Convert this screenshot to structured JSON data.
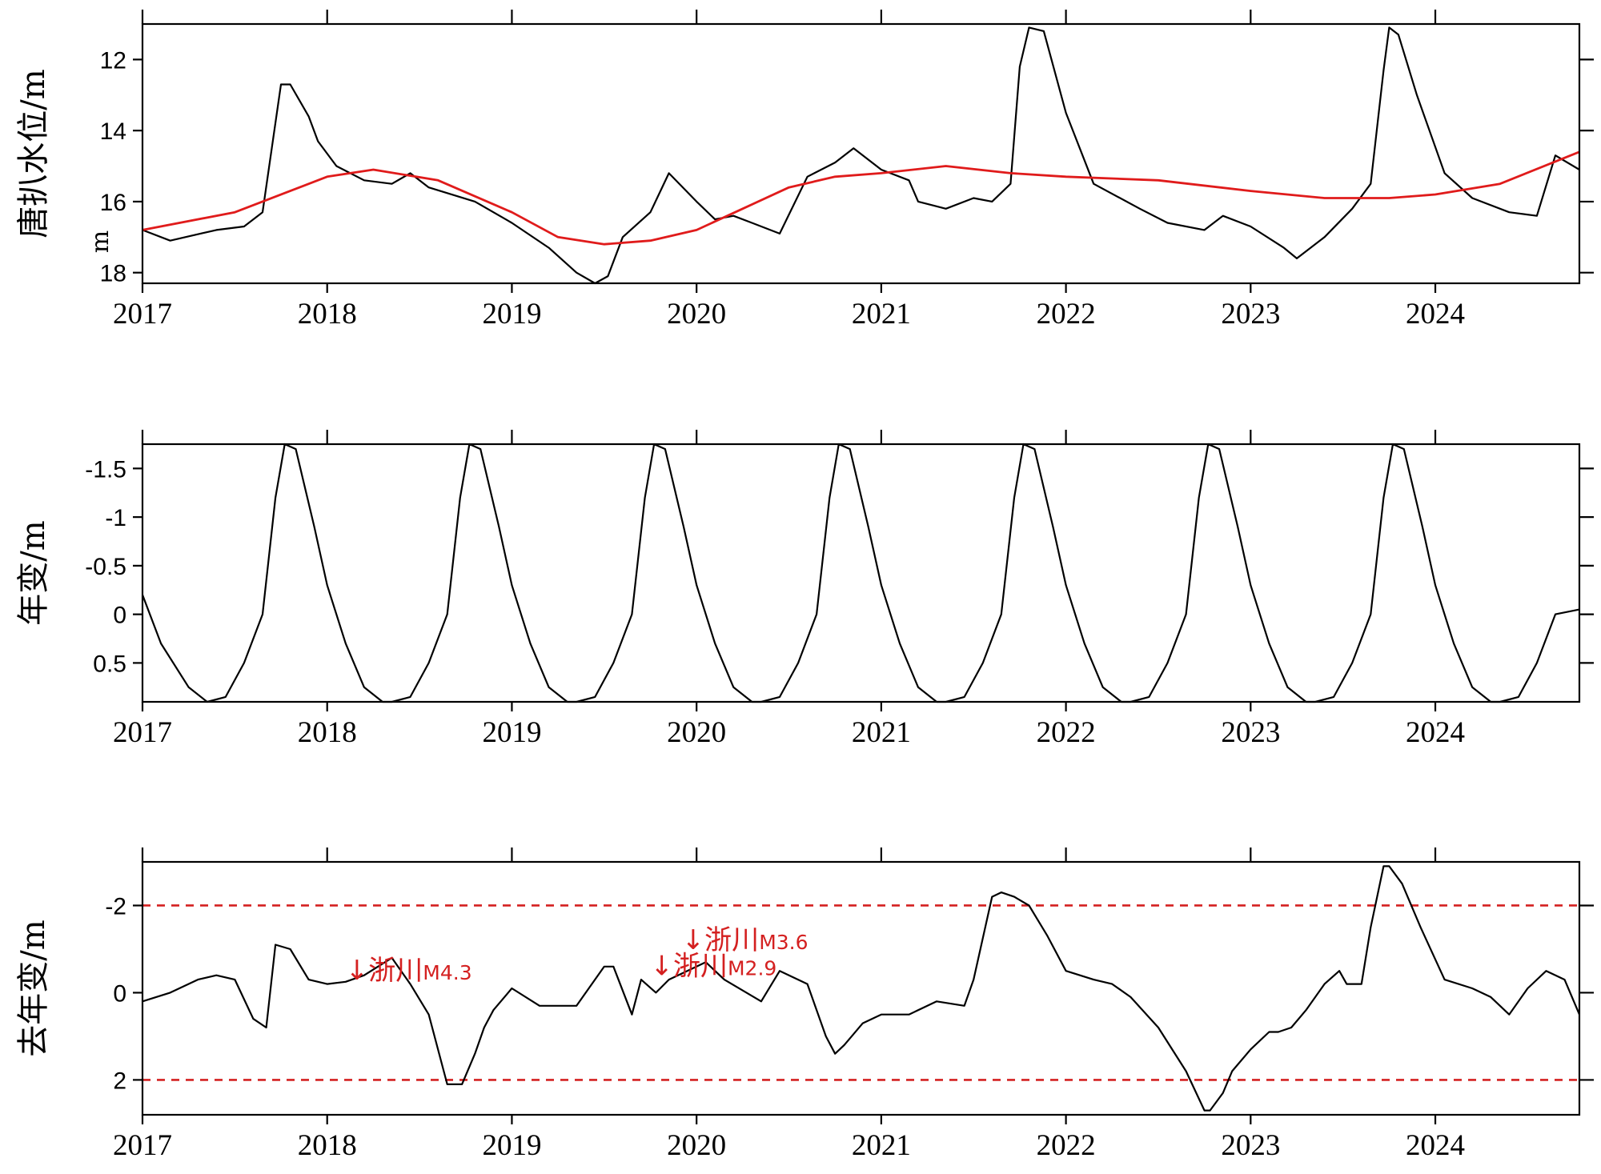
{
  "colors": {
    "series": "#000000",
    "trend": "#e01b1b",
    "threshold": "#d42020",
    "annotation": "#d42020"
  },
  "chart_data": [
    {
      "type": "line",
      "ylabel": "唐扒水位/m",
      "unit_note": "m",
      "ylim": [
        18.3,
        11.0
      ],
      "y_inverted": true,
      "yticks": [
        "12",
        "14",
        "16",
        "18"
      ],
      "xlim": [
        2017.0,
        2024.78
      ],
      "xticks": [
        "2017",
        "2018",
        "2019",
        "2020",
        "2021",
        "2022",
        "2023",
        "2024"
      ],
      "series": [
        {
          "role": "observed",
          "color": "#000000",
          "x": [
            2017.0,
            2017.15,
            2017.4,
            2017.55,
            2017.65,
            2017.75,
            2017.8,
            2017.9,
            2017.95,
            2018.05,
            2018.2,
            2018.35,
            2018.45,
            2018.55,
            2018.8,
            2019.0,
            2019.2,
            2019.35,
            2019.45,
            2019.52,
            2019.6,
            2019.75,
            2019.85,
            2020.0,
            2020.1,
            2020.2,
            2020.3,
            2020.45,
            2020.6,
            2020.75,
            2020.85,
            2021.0,
            2021.15,
            2021.2,
            2021.35,
            2021.5,
            2021.6,
            2021.7,
            2021.75,
            2021.8,
            2021.88,
            2022.0,
            2022.15,
            2022.4,
            2022.55,
            2022.75,
            2022.85,
            2023.0,
            2023.18,
            2023.25,
            2023.4,
            2023.55,
            2023.65,
            2023.72,
            2023.75,
            2023.8,
            2023.9,
            2024.05,
            2024.2,
            2024.4,
            2024.55,
            2024.65,
            2024.78
          ],
          "y": [
            16.8,
            17.1,
            16.8,
            16.7,
            16.3,
            12.7,
            12.7,
            13.6,
            14.3,
            15.0,
            15.4,
            15.5,
            15.2,
            15.6,
            16.0,
            16.6,
            17.3,
            18.0,
            18.3,
            18.1,
            17.0,
            16.3,
            15.2,
            16.0,
            16.5,
            16.4,
            16.6,
            16.9,
            15.3,
            14.9,
            14.5,
            15.1,
            15.4,
            16.0,
            16.2,
            15.9,
            16.0,
            15.5,
            12.2,
            11.1,
            11.2,
            13.5,
            15.5,
            16.2,
            16.6,
            16.8,
            16.4,
            16.7,
            17.3,
            17.6,
            17.0,
            16.2,
            15.5,
            12.3,
            11.1,
            11.3,
            13.0,
            15.2,
            15.9,
            16.3,
            16.4,
            14.7,
            15.1
          ]
        },
        {
          "role": "trend",
          "color": "#e01b1b",
          "x": [
            2017.0,
            2017.5,
            2017.8,
            2018.0,
            2018.25,
            2018.6,
            2019.0,
            2019.25,
            2019.5,
            2019.75,
            2020.0,
            2020.25,
            2020.5,
            2020.75,
            2021.0,
            2021.35,
            2021.7,
            2022.0,
            2022.5,
            2023.0,
            2023.4,
            2023.75,
            2024.0,
            2024.35,
            2024.78
          ],
          "y": [
            16.8,
            16.3,
            15.7,
            15.3,
            15.1,
            15.4,
            16.3,
            17.0,
            17.2,
            17.1,
            16.8,
            16.2,
            15.6,
            15.3,
            15.2,
            15.0,
            15.2,
            15.3,
            15.4,
            15.7,
            15.9,
            15.9,
            15.8,
            15.5,
            14.6
          ]
        }
      ]
    },
    {
      "type": "line",
      "ylabel": "年变/m",
      "ylim": [
        0.9,
        -1.75
      ],
      "y_inverted": true,
      "yticks": [
        "-1.5",
        "-1",
        "-0.5",
        "0",
        "0.5"
      ],
      "xlim": [
        2017.0,
        2024.78
      ],
      "xticks": [
        "2017",
        "2018",
        "2019",
        "2020",
        "2021",
        "2022",
        "2023",
        "2024"
      ],
      "series": [
        {
          "role": "annual",
          "color": "#000000",
          "x": [
            2017.0,
            2017.1,
            2017.25,
            2017.35,
            2017.45,
            2017.55,
            2017.65,
            2017.72,
            2017.77,
            2017.83,
            2017.93,
            2018.0,
            2018.1,
            2018.2,
            2018.3,
            2018.35,
            2018.45,
            2018.55,
            2018.65,
            2018.72,
            2018.77,
            2018.83,
            2018.93,
            2019.0,
            2019.1,
            2019.2,
            2019.3,
            2019.35,
            2019.45,
            2019.55,
            2019.65,
            2019.72,
            2019.77,
            2019.83,
            2019.93,
            2020.0,
            2020.1,
            2020.2,
            2020.3,
            2020.35,
            2020.45,
            2020.55,
            2020.65,
            2020.72,
            2020.77,
            2020.83,
            2020.93,
            2021.0,
            2021.1,
            2021.2,
            2021.3,
            2021.35,
            2021.45,
            2021.55,
            2021.65,
            2021.72,
            2021.77,
            2021.83,
            2021.93,
            2022.0,
            2022.1,
            2022.2,
            2022.3,
            2022.35,
            2022.45,
            2022.55,
            2022.65,
            2022.72,
            2022.77,
            2022.83,
            2022.93,
            2023.0,
            2023.1,
            2023.2,
            2023.3,
            2023.35,
            2023.45,
            2023.55,
            2023.65,
            2023.72,
            2023.77,
            2023.83,
            2023.93,
            2024.0,
            2024.1,
            2024.2,
            2024.3,
            2024.35,
            2024.45,
            2024.55,
            2024.65,
            2024.78
          ],
          "y": [
            -0.2,
            0.3,
            0.75,
            0.9,
            0.85,
            0.5,
            0.0,
            -1.2,
            -1.75,
            -1.7,
            -0.9,
            -0.3,
            0.3,
            0.75,
            0.9,
            0.9,
            0.85,
            0.5,
            0.0,
            -1.2,
            -1.75,
            -1.7,
            -0.9,
            -0.3,
            0.3,
            0.75,
            0.9,
            0.9,
            0.85,
            0.5,
            0.0,
            -1.2,
            -1.75,
            -1.7,
            -0.9,
            -0.3,
            0.3,
            0.75,
            0.9,
            0.9,
            0.85,
            0.5,
            0.0,
            -1.2,
            -1.75,
            -1.7,
            -0.9,
            -0.3,
            0.3,
            0.75,
            0.9,
            0.9,
            0.85,
            0.5,
            0.0,
            -1.2,
            -1.75,
            -1.7,
            -0.9,
            -0.3,
            0.3,
            0.75,
            0.9,
            0.9,
            0.85,
            0.5,
            0.0,
            -1.2,
            -1.75,
            -1.7,
            -0.9,
            -0.3,
            0.3,
            0.75,
            0.9,
            0.9,
            0.85,
            0.5,
            0.0,
            -1.2,
            -1.75,
            -1.7,
            -0.9,
            -0.3,
            0.3,
            0.75,
            0.9,
            0.9,
            0.85,
            0.5,
            0.0,
            -0.05
          ]
        }
      ]
    },
    {
      "type": "line",
      "ylabel": "去年变/m",
      "ylim": [
        2.8,
        -3.0
      ],
      "y_inverted": true,
      "yticks": [
        "-2",
        "0",
        "2"
      ],
      "xlim": [
        2017.0,
        2024.78
      ],
      "xticks": [
        "2017",
        "2018",
        "2019",
        "2020",
        "2021",
        "2022",
        "2023",
        "2024"
      ],
      "thresholds": [
        -2.0,
        2.0
      ],
      "series": [
        {
          "role": "deannual",
          "color": "#000000",
          "x": [
            2017.0,
            2017.15,
            2017.3,
            2017.4,
            2017.5,
            2017.6,
            2017.67,
            2017.72,
            2017.8,
            2017.9,
            2018.0,
            2018.1,
            2018.2,
            2018.35,
            2018.45,
            2018.55,
            2018.65,
            2018.73,
            2018.8,
            2018.85,
            2018.9,
            2019.0,
            2019.15,
            2019.2,
            2019.35,
            2019.5,
            2019.55,
            2019.65,
            2019.7,
            2019.78,
            2019.85,
            2019.95,
            2020.05,
            2020.15,
            2020.35,
            2020.45,
            2020.6,
            2020.7,
            2020.75,
            2020.8,
            2020.9,
            2021.0,
            2021.15,
            2021.3,
            2021.45,
            2021.5,
            2021.6,
            2021.65,
            2021.72,
            2021.8,
            2021.9,
            2022.0,
            2022.15,
            2022.25,
            2022.35,
            2022.5,
            2022.65,
            2022.75,
            2022.78,
            2022.85,
            2022.9,
            2023.0,
            2023.1,
            2023.15,
            2023.22,
            2023.3,
            2023.4,
            2023.48,
            2023.52,
            2023.6,
            2023.65,
            2023.72,
            2023.75,
            2023.82,
            2023.92,
            2024.05,
            2024.2,
            2024.3,
            2024.4,
            2024.5,
            2024.6,
            2024.7,
            2024.78
          ],
          "y": [
            0.2,
            0.0,
            -0.3,
            -0.4,
            -0.3,
            0.6,
            0.8,
            -1.1,
            -1.0,
            -0.3,
            -0.2,
            -0.25,
            -0.4,
            -0.8,
            -0.2,
            0.5,
            2.1,
            2.1,
            1.4,
            0.8,
            0.4,
            -0.1,
            0.3,
            0.3,
            0.3,
            -0.6,
            -0.6,
            0.5,
            -0.3,
            0.0,
            -0.3,
            -0.5,
            -0.7,
            -0.3,
            0.2,
            -0.5,
            -0.2,
            1.0,
            1.4,
            1.2,
            0.7,
            0.5,
            0.5,
            0.2,
            0.3,
            -0.3,
            -2.2,
            -2.3,
            -2.2,
            -2.0,
            -1.3,
            -0.5,
            -0.3,
            -0.2,
            0.1,
            0.8,
            1.8,
            2.7,
            2.7,
            2.3,
            1.8,
            1.3,
            0.9,
            0.9,
            0.8,
            0.4,
            -0.2,
            -0.5,
            -0.2,
            -0.2,
            -1.5,
            -2.9,
            -2.9,
            -2.5,
            -1.5,
            -0.3,
            -0.1,
            0.1,
            0.5,
            -0.1,
            -0.5,
            -0.3,
            0.5
          ]
        }
      ],
      "annotations": [
        {
          "name": "浙川",
          "mag": "M4.3",
          "x": 2018.1,
          "y": -0.3
        },
        {
          "name": "浙川",
          "mag": "M2.9",
          "x": 2019.75,
          "y": -0.4
        },
        {
          "name": "浙川",
          "mag": "M3.6",
          "x": 2019.92,
          "y": -1.0
        }
      ]
    }
  ]
}
